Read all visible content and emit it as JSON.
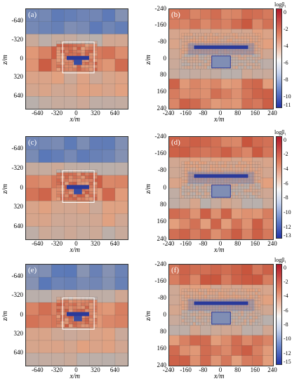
{
  "panels": [
    {
      "label": "(a)",
      "wide": true,
      "yticks": [
        "-640",
        "-320",
        "0",
        "320",
        "640"
      ],
      "xticks": [
        "-640",
        "-320",
        "0",
        "320",
        "640"
      ],
      "xlabel": "x/m",
      "ylabel": "z/m"
    },
    {
      "label": "(b)",
      "wide": false,
      "yticks": [
        "-240",
        "-160",
        "-80",
        "0",
        "80",
        "160",
        "240"
      ],
      "xticks": [
        "-240",
        "-160",
        "-80",
        "0",
        "80",
        "160",
        "240"
      ],
      "xlabel": "x/m",
      "ylabel": "z/m",
      "colorbar": {
        "title": "logβ₁",
        "ticks": [
          "0",
          "-2",
          "-4",
          "-6",
          "-8",
          "-10",
          "-11"
        ]
      }
    },
    {
      "label": "(c)",
      "wide": true,
      "yticks": [
        "-640",
        "-320",
        "0",
        "320",
        "640"
      ],
      "xticks": [
        "-640",
        "-320",
        "0",
        "320",
        "640"
      ],
      "xlabel": "x/m",
      "ylabel": "z/m"
    },
    {
      "label": "(d)",
      "wide": false,
      "yticks": [
        "-240",
        "-160",
        "-80",
        "0",
        "80",
        "160",
        "240"
      ],
      "xticks": [
        "-240",
        "-160",
        "-80",
        "0",
        "80",
        "160",
        "240"
      ],
      "xlabel": "x/m",
      "ylabel": "z/m",
      "colorbar": {
        "title": "logβ₁",
        "ticks": [
          "0",
          "-2",
          "-4",
          "-6",
          "-8",
          "-10",
          "-12",
          "-13"
        ]
      }
    },
    {
      "label": "(e)",
      "wide": true,
      "yticks": [
        "-640",
        "-320",
        "0",
        "320",
        "640"
      ],
      "xticks": [
        "-640",
        "-320",
        "0",
        "320",
        "640"
      ],
      "xlabel": "x/m",
      "ylabel": "z/m"
    },
    {
      "label": "(f)",
      "wide": false,
      "yticks": [
        "-240",
        "-160",
        "-80",
        "0",
        "80",
        "160",
        "240"
      ],
      "xticks": [
        "-240",
        "-160",
        "-80",
        "0",
        "80",
        "160",
        "240"
      ],
      "xlabel": "x/m",
      "ylabel": "z/m",
      "colorbar": {
        "title": "logβ₁",
        "ticks": [
          "0",
          "-2",
          "-4",
          "-6",
          "-8",
          "-10",
          "-12",
          "-15"
        ]
      }
    }
  ],
  "colors": {
    "red": "#c8553d",
    "orange": "#e3a07e",
    "blue": "#5a78b8",
    "grey": "#b8b0ad",
    "deepblue": "#2a3a9a"
  }
}
